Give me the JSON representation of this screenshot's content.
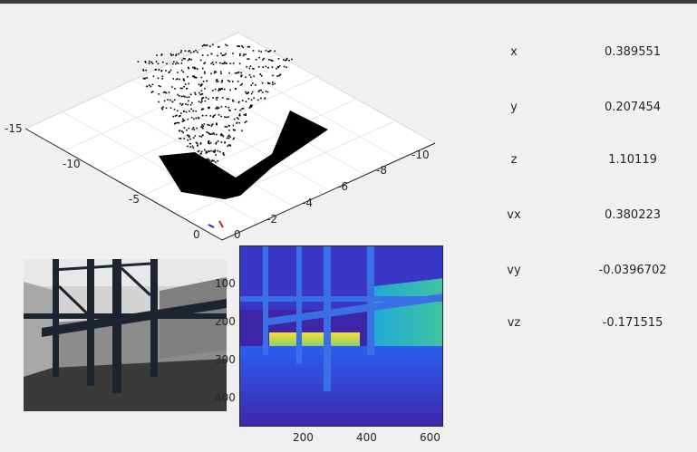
{
  "plot3d": {
    "ticks_left": [
      "-15",
      "-10",
      "-5",
      "0"
    ],
    "ticks_right": [
      "-10",
      "-8",
      "-6",
      "-4",
      "-2",
      "0"
    ],
    "point_color": "#000000",
    "plane_color": "#ffffff"
  },
  "state": {
    "items": [
      {
        "label": "x",
        "value": "0.389551"
      },
      {
        "label": "y",
        "value": "0.207454"
      },
      {
        "label": "z",
        "value": "1.10119"
      },
      {
        "label": "vx",
        "value": "0.380223"
      },
      {
        "label": "vy",
        "value": "-0.0396702"
      },
      {
        "label": "vz",
        "value": "-0.171515"
      }
    ]
  },
  "depth_image": {
    "y_ticks": [
      "100",
      "200",
      "300",
      "400"
    ],
    "x_ticks": [
      "200",
      "400",
      "600"
    ],
    "colormap": [
      "#3e26a8",
      "#2b5ff2",
      "#1ea7dc",
      "#41c3a0",
      "#f9e02a"
    ]
  },
  "camera_image": {
    "description_icon": "grayscale-camera-view"
  }
}
